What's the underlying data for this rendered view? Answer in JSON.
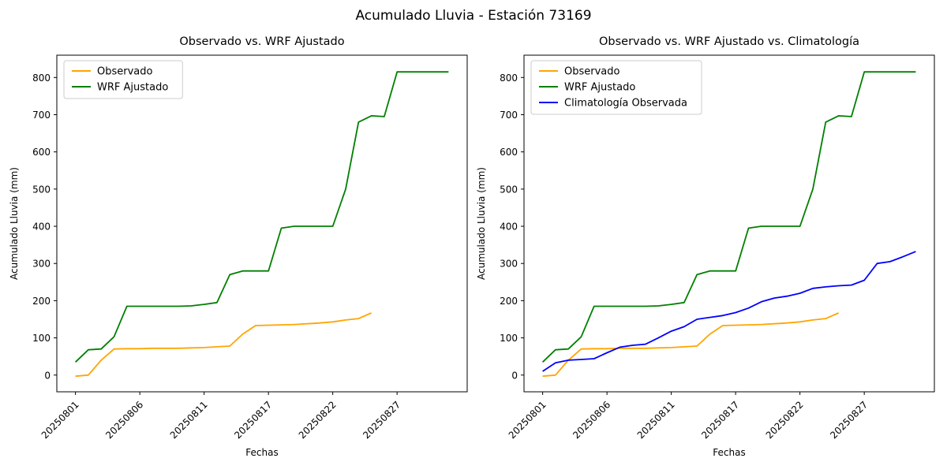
{
  "figure": {
    "title": "Acumulado Lluvia - Estación 73169",
    "background": "#ffffff"
  },
  "chart_data": [
    {
      "type": "line",
      "title": "Observado vs. WRF Ajustado",
      "xlabel": "Fechas",
      "ylabel": "Acumulado Lluvia (mm)",
      "grid": false,
      "legend_position": "upper-left",
      "xlim": [
        -1.45,
        30.45
      ],
      "ylim": [
        -45,
        860
      ],
      "yticks": [
        0,
        100,
        200,
        300,
        400,
        500,
        600,
        700,
        800
      ],
      "xticks": [
        0,
        5,
        10,
        15,
        20,
        25
      ],
      "xtick_labels": [
        "20250801",
        "20250806",
        "20250811",
        "20250817",
        "20250822",
        "20250827"
      ],
      "x_dates": [
        "20250801",
        "20250802",
        "20250803",
        "20250804",
        "20250805",
        "20250806",
        "20250807",
        "20250808",
        "20250809",
        "20250810",
        "20250811",
        "20250813",
        "20250814",
        "20250815",
        "20250816",
        "20250817",
        "20250818",
        "20250819",
        "20250820",
        "20250821",
        "20250822",
        "20250823",
        "20250824",
        "20250825",
        "20250826",
        "20250827",
        "20250828",
        "20250829",
        "20250830",
        "20250831"
      ],
      "series": [
        {
          "name": "Observado",
          "color": "#ffa500",
          "values": [
            -3,
            0,
            40,
            70,
            71,
            71,
            72,
            72,
            72,
            73,
            74,
            76,
            78,
            110,
            133,
            134,
            135,
            136,
            138,
            140,
            143,
            148,
            152,
            167,
            null,
            null,
            null,
            null,
            null,
            null
          ]
        },
        {
          "name": "WRF Ajustado",
          "color": "#008000",
          "values": [
            35,
            68,
            70,
            103,
            185,
            185,
            185,
            185,
            185,
            186,
            190,
            195,
            270,
            280,
            280,
            280,
            395,
            400,
            400,
            400,
            400,
            500,
            680,
            697,
            695,
            815,
            815,
            815,
            815,
            815
          ]
        }
      ]
    },
    {
      "type": "line",
      "title": "Observado vs. WRF Ajustado vs. Climatología",
      "xlabel": "Fechas",
      "ylabel": "Acumulado Lluvia (mm)",
      "grid": false,
      "legend_position": "upper-left",
      "xlim": [
        -1.45,
        30.45
      ],
      "ylim": [
        -45,
        860
      ],
      "yticks": [
        0,
        100,
        200,
        300,
        400,
        500,
        600,
        700,
        800
      ],
      "xticks": [
        0,
        5,
        10,
        15,
        20,
        25
      ],
      "xtick_labels": [
        "20250801",
        "20250806",
        "20250811",
        "20250817",
        "20250822",
        "20250827"
      ],
      "x_dates": [
        "20250801",
        "20250802",
        "20250803",
        "20250804",
        "20250805",
        "20250806",
        "20250807",
        "20250808",
        "20250809",
        "20250810",
        "20250811",
        "20250813",
        "20250814",
        "20250815",
        "20250816",
        "20250817",
        "20250818",
        "20250819",
        "20250820",
        "20250821",
        "20250822",
        "20250823",
        "20250824",
        "20250825",
        "20250826",
        "20250827",
        "20250828",
        "20250829",
        "20250830",
        "20250831"
      ],
      "series": [
        {
          "name": "Observado",
          "color": "#ffa500",
          "values": [
            -3,
            0,
            40,
            70,
            71,
            71,
            72,
            72,
            72,
            73,
            74,
            76,
            78,
            110,
            133,
            134,
            135,
            136,
            138,
            140,
            143,
            148,
            152,
            167,
            null,
            null,
            null,
            null,
            null,
            null
          ]
        },
        {
          "name": "WRF Ajustado",
          "color": "#008000",
          "values": [
            35,
            68,
            70,
            103,
            185,
            185,
            185,
            185,
            185,
            186,
            190,
            195,
            270,
            280,
            280,
            280,
            395,
            400,
            400,
            400,
            400,
            500,
            680,
            697,
            695,
            815,
            815,
            815,
            815,
            815
          ]
        },
        {
          "name": "Climatología Observada",
          "color": "#0000ff",
          "values": [
            10,
            33,
            40,
            42,
            44,
            60,
            75,
            80,
            83,
            100,
            118,
            130,
            150,
            155,
            160,
            168,
            180,
            197,
            207,
            212,
            220,
            233,
            237,
            240,
            242,
            255,
            300,
            305,
            318,
            332
          ]
        }
      ]
    }
  ]
}
